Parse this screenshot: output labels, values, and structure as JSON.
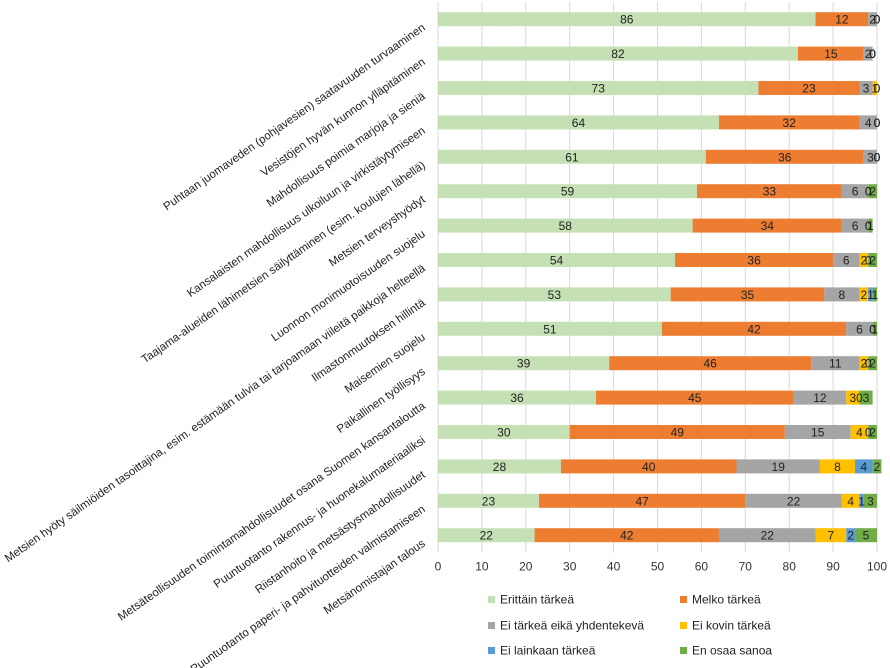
{
  "chart_data": {
    "type": "bar",
    "orientation": "horizontal",
    "stacked": true,
    "title": "",
    "xlabel": "",
    "ylabel": "",
    "xlim": [
      0,
      100
    ],
    "xticks": [
      0,
      10,
      20,
      30,
      40,
      50,
      60,
      70,
      80,
      90,
      100
    ],
    "grid": true,
    "legend_position": "bottom",
    "categories": [
      "Puhtaan juomaveden (pohjavesien) saatavuuden turvaaminen",
      "Vesistöjen hyvän kunnon ylläpitäminen",
      "Mahdollisuus poimia marjoja ja sieniä",
      "Kansalaisten mahdollisuus ulkoiluun ja virkistäytymiseen",
      "Taajama-alueiden lähimetsien säilyttäminen (esim. koulujen lähellä)",
      "Metsien terveyshyödyt",
      "Luonnon monimuotoisuuden suojelu",
      "Metsien hyöty säilmiöiden  tasoittajina, esim. estämään tulvia tai tarjoamaan viileitä paikkoja helteellä",
      "Ilmastonmuutoksen hillintä",
      "Maisemien suojelu",
      "Paikallinen työllisyys",
      "Metsäteollisuuden toimintamahdollisuudet osana Suomen kansantaloutta",
      "Puuntuotanto rakennus- ja huonekalumateriaaliksi",
      "Riistanhoito ja metsästysmahdollisuudet",
      "Puuntuotanto paperi- ja pahvituotteiden valmistamiseen",
      "Metsänomistajan talous"
    ],
    "series": [
      {
        "name": "Erittäin tärkeä",
        "color": "#c5e0b4",
        "values": [
          86,
          82,
          73,
          64,
          61,
          59,
          58,
          54,
          53,
          51,
          39,
          36,
          30,
          28,
          23,
          22
        ]
      },
      {
        "name": "Melko tärkeä",
        "color": "#ed7d31",
        "values": [
          12,
          15,
          23,
          32,
          36,
          33,
          34,
          36,
          35,
          42,
          46,
          45,
          49,
          40,
          47,
          42
        ]
      },
      {
        "name": "Ei tärkeä eikä yhdentekevä",
        "color": "#a5a5a5",
        "values": [
          2,
          2,
          3,
          4,
          3,
          6,
          6,
          6,
          8,
          6,
          11,
          12,
          15,
          19,
          22,
          22
        ]
      },
      {
        "name": "Ei kovin tärkeä",
        "color": "#ffc000",
        "values": [
          0,
          0,
          1,
          0,
          0,
          0,
          0,
          2,
          2,
          0,
          2,
          3,
          4,
          8,
          4,
          7
        ]
      },
      {
        "name": "Ei lainkaan tärkeä",
        "color": "#5b9bd5",
        "values": [
          0,
          0,
          0,
          0,
          0,
          0,
          0,
          0,
          1,
          0,
          0,
          0,
          0,
          4,
          1,
          2
        ]
      },
      {
        "name": "En osaa sanoa",
        "color": "#70ad47",
        "values": [
          0,
          0,
          0,
          0,
          0,
          2,
          1,
          2,
          1,
          1,
          2,
          3,
          2,
          2,
          3,
          5
        ]
      }
    ]
  }
}
